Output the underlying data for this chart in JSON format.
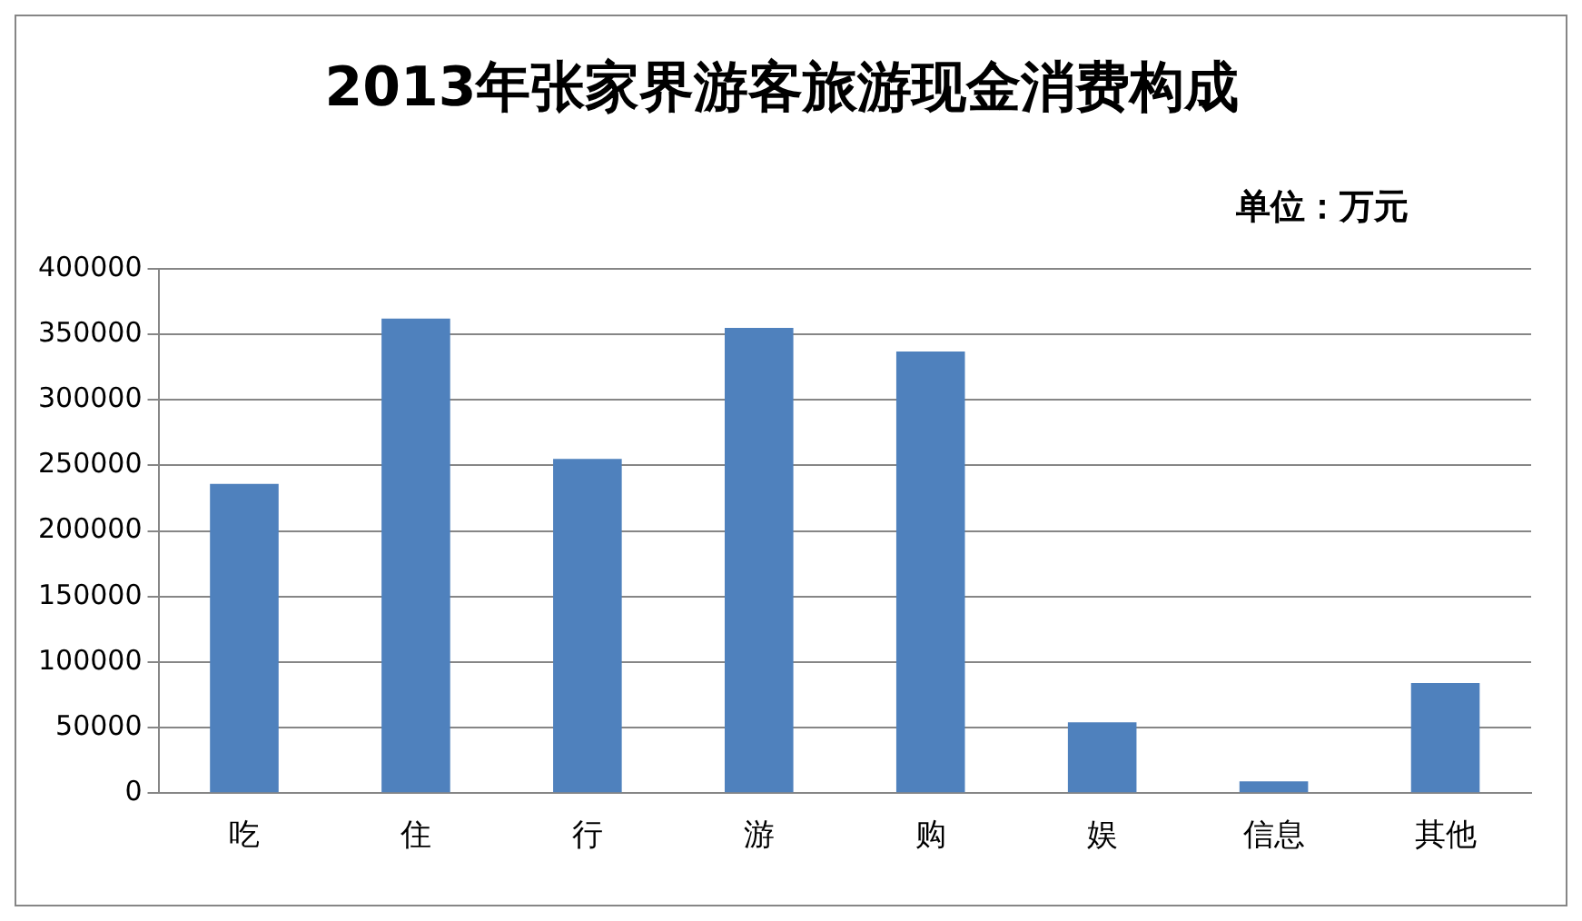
{
  "chart_data": {
    "type": "bar",
    "title": "2013年张家界游客旅游现金消费构成",
    "annotations": [
      "单位：万元"
    ],
    "categories": [
      "吃",
      "住",
      "行",
      "游",
      "购",
      "娱",
      "信息",
      "其他"
    ],
    "values": [
      236000,
      362000,
      255000,
      355000,
      337000,
      54000,
      9000,
      84000
    ],
    "color": "#4f81bd",
    "ylim": [
      0,
      400000
    ],
    "yticks": [
      0,
      50000,
      100000,
      150000,
      200000,
      250000,
      300000,
      350000,
      400000
    ],
    "grid": "y",
    "legend": false
  }
}
